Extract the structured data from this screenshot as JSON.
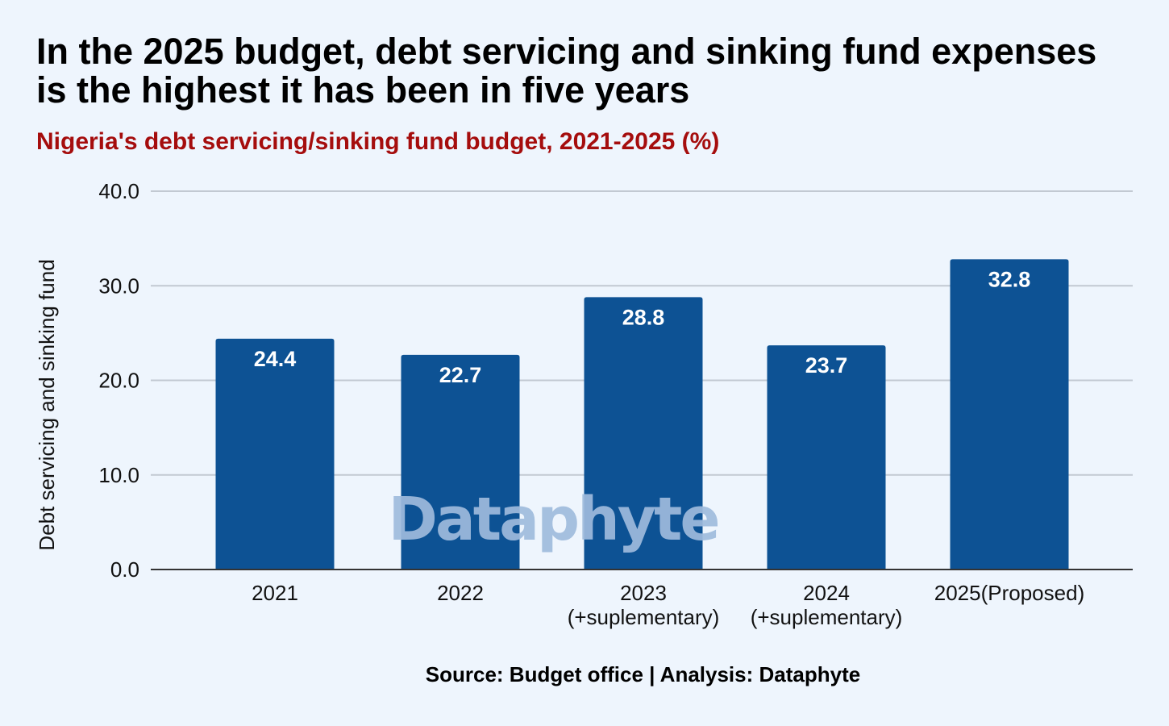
{
  "title": "In the 2025 budget, debt servicing and sinking fund expenses is the highest it has been in five years",
  "subtitle": "Nigeria's debt servicing/sinking fund budget, 2021-2025 (%)",
  "source": "Source: Budget office | Analysis: Dataphyte",
  "watermark": "Dataphyte",
  "colors": {
    "bar": "#0d5294",
    "subtitle": "#a50d0d",
    "background": "#eef5fd",
    "grid": "#c2c9d2"
  },
  "chart_data": {
    "type": "bar",
    "categories": [
      "2021",
      "2022",
      "2023\n(+suplementary)",
      "2024\n(+suplementary)",
      "2025(Proposed)"
    ],
    "values": [
      24.4,
      22.7,
      28.8,
      23.7,
      32.8
    ],
    "value_labels": [
      "24.4",
      "22.7",
      "28.8",
      "23.7",
      "32.8"
    ],
    "ylabel": "Debt servicing and sinking fund",
    "ylim": [
      0,
      40
    ],
    "yticks": [
      "0.0",
      "10.0",
      "20.0",
      "30.0",
      "40.0"
    ],
    "grid": true,
    "legend": "none"
  }
}
